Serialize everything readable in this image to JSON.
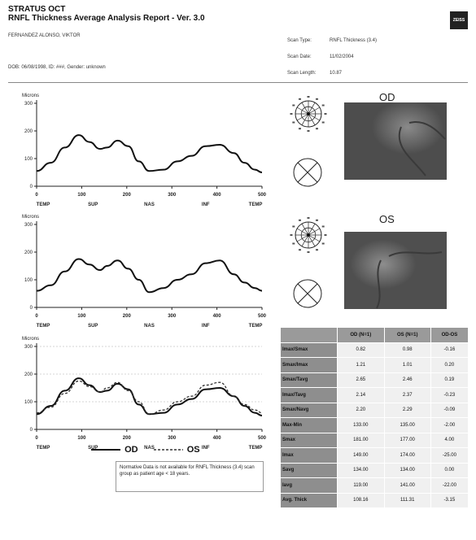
{
  "header": {
    "title_line1": "STRATUS OCT",
    "title_line2": "RNFL Thickness Average Analysis  Report - Ver. 3.0",
    "patient_name": "FERNANDEZ ALONSO, VIKTOR",
    "patient_info": "DOB: 06/08/1998, ID: ###, Gender: unknown",
    "logo_text": "ZEISS"
  },
  "scan_info": [
    {
      "key": "Scan Type:",
      "value": "RNFL Thickness (3.4)"
    },
    {
      "key": "Scan Date:",
      "value": "11/02/2004"
    },
    {
      "key": "Scan Length:",
      "value": "10.87"
    }
  ],
  "eyes": {
    "od_label": "OD",
    "os_label": "OS"
  },
  "plot_common": {
    "ylabel": "Microns",
    "y_ticks": [
      "300",
      "200",
      "100",
      "0"
    ],
    "x_ticks": [
      "0",
      "100",
      "200",
      "300",
      "400",
      "500"
    ],
    "quadrants": [
      "TEMP",
      "SUP",
      "NAS",
      "INF",
      "TEMP"
    ]
  },
  "chart_data": [
    {
      "type": "line",
      "title": "",
      "ylabel": "Microns",
      "xlim": [
        0,
        256
      ],
      "ylim": [
        0,
        300
      ],
      "series": [
        {
          "color": "#111111",
          "style": "solid",
          "x": [
            0,
            16,
            32,
            48,
            60,
            72,
            80,
            92,
            104,
            116,
            128,
            144,
            160,
            176,
            192,
            208,
            224,
            236,
            248,
            256
          ],
          "values": [
            55,
            85,
            140,
            185,
            160,
            135,
            140,
            165,
            145,
            90,
            55,
            60,
            90,
            110,
            145,
            150,
            120,
            85,
            60,
            50
          ]
        }
      ]
    },
    {
      "type": "line",
      "title": "",
      "ylabel": "Microns",
      "xlim": [
        0,
        256
      ],
      "ylim": [
        0,
        300
      ],
      "series": [
        {
          "color": "#111111",
          "style": "solid",
          "x": [
            0,
            16,
            32,
            48,
            60,
            72,
            80,
            92,
            104,
            116,
            128,
            144,
            160,
            176,
            192,
            208,
            224,
            236,
            248,
            256
          ],
          "values": [
            60,
            80,
            130,
            175,
            155,
            135,
            150,
            170,
            140,
            100,
            55,
            70,
            100,
            120,
            160,
            170,
            120,
            90,
            70,
            60
          ]
        }
      ]
    },
    {
      "type": "line",
      "title": "",
      "ylabel": "Microns",
      "xlim": [
        0,
        256
      ],
      "ylim": [
        0,
        300
      ],
      "series": [
        {
          "name": "OD",
          "color": "#111111",
          "style": "solid",
          "x": [
            0,
            16,
            32,
            48,
            60,
            72,
            80,
            92,
            104,
            116,
            128,
            144,
            160,
            176,
            192,
            208,
            224,
            236,
            248,
            256
          ],
          "values": [
            55,
            85,
            140,
            185,
            160,
            135,
            140,
            165,
            145,
            90,
            55,
            60,
            90,
            110,
            145,
            150,
            120,
            85,
            60,
            50
          ]
        },
        {
          "name": "OS",
          "color": "#333333",
          "style": "dashed",
          "x": [
            0,
            16,
            32,
            48,
            60,
            72,
            80,
            92,
            104,
            116,
            128,
            144,
            160,
            176,
            192,
            208,
            224,
            236,
            248,
            256
          ],
          "values": [
            60,
            80,
            130,
            175,
            155,
            135,
            150,
            170,
            140,
            100,
            55,
            70,
            100,
            120,
            160,
            170,
            120,
            90,
            70,
            60
          ]
        }
      ]
    }
  ],
  "legend": {
    "od": "OD",
    "os": "OS"
  },
  "note": "Normative Data is not available for RNFL Thickness (3.4) scan group as patient age < 18 years.",
  "table": {
    "columns": [
      "",
      "OD (N=1)",
      "OS (N=1)",
      "OD-OS"
    ],
    "rows": [
      [
        "Imax/Smax",
        "0.82",
        "0.98",
        "-0.16"
      ],
      [
        "Smax/Imax",
        "1.21",
        "1.01",
        "0.20"
      ],
      [
        "Smax/Tavg",
        "2.65",
        "2.46",
        "0.19"
      ],
      [
        "Imax/Tavg",
        "2.14",
        "2.37",
        "-0.23"
      ],
      [
        "Smax/Navg",
        "2.20",
        "2.29",
        "-0.09"
      ],
      [
        "Max-Min",
        "133.00",
        "135.00",
        "-2.00"
      ],
      [
        "Smax",
        "181.00",
        "177.00",
        "4.00"
      ],
      [
        "Imax",
        "149.00",
        "174.00",
        "-25.00"
      ],
      [
        "Savg",
        "134.00",
        "134.00",
        "0.00"
      ],
      [
        "Iavg",
        "119.00",
        "141.00",
        "-22.00"
      ],
      [
        "Avg. Thick",
        "108.16",
        "111.31",
        "-3.15"
      ]
    ]
  }
}
